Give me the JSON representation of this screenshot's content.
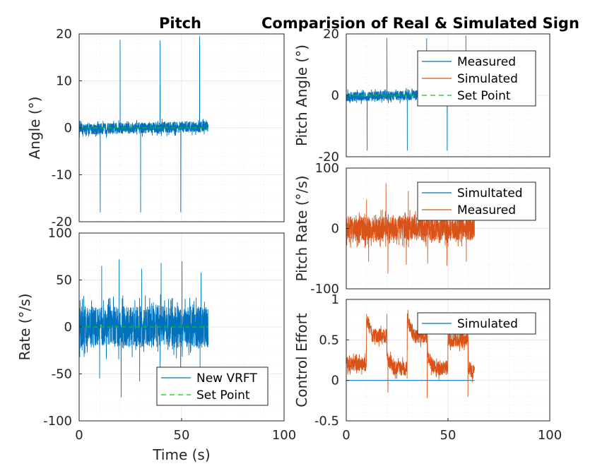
{
  "colors": {
    "blue": "#0072BD",
    "orange": "#D95319",
    "setpoint": "#00CC00",
    "grid": "#e3e3e3",
    "axis": "#262626"
  },
  "chart_data": [
    {
      "id": "left-top",
      "type": "line",
      "title": "Pitch",
      "xlabel": "",
      "ylabel": "Angle (°)",
      "xlim": [
        0,
        100
      ],
      "ylim": [
        -20,
        20
      ],
      "yticks": [
        "20",
        "10",
        "0",
        "-10",
        "-20"
      ],
      "xticks": [],
      "grid": true,
      "minor_grid": true,
      "legend": null,
      "series": [
        {
          "color": "blue",
          "kind": "noise",
          "x": [
            0,
            63
          ],
          "level": [
            [
              0,
              -0.3
            ],
            [
              63,
              0.3
            ]
          ],
          "amp": 1.2,
          "spikes": [
            [
              10.3,
              -18
            ],
            [
              20,
              18.7
            ],
            [
              30,
              -18
            ],
            [
              39.5,
              18.6
            ],
            [
              49.6,
              -18
            ],
            [
              58.8,
              19.5
            ]
          ]
        },
        {
          "color": "setpoint",
          "kind": "dashed",
          "x": [
            0,
            63
          ],
          "y": [
            0,
            0
          ]
        }
      ]
    },
    {
      "id": "left-bottom",
      "type": "line",
      "title": "",
      "xlabel": "Time (s)",
      "ylabel": "Rate (°/s)",
      "xlim": [
        0,
        100
      ],
      "ylim": [
        -100,
        100
      ],
      "yticks": [
        "100",
        "50",
        "0",
        "-50",
        "-100"
      ],
      "xticks": [
        "0",
        "50",
        "100"
      ],
      "grid": true,
      "minor_grid": true,
      "legend": {
        "position": "bottom-right",
        "entries": [
          {
            "label": "New VRFT",
            "color": "blue",
            "style": "solid"
          },
          {
            "label": "Set Point",
            "color": "setpoint",
            "style": "dashed"
          }
        ]
      },
      "series": [
        {
          "name": "New VRFT",
          "color": "blue",
          "kind": "noise",
          "x": [
            0,
            63
          ],
          "level": [
            [
              0,
              0
            ],
            [
              63,
              0
            ]
          ],
          "amp": 22,
          "spikes": [
            [
              10,
              -55
            ],
            [
              11,
              65
            ],
            [
              19.5,
              72
            ],
            [
              20.5,
              -75
            ],
            [
              29.5,
              -58
            ],
            [
              30.5,
              62
            ],
            [
              39.5,
              -55
            ],
            [
              40,
              68
            ],
            [
              49.5,
              -62
            ],
            [
              50.2,
              70
            ],
            [
              59,
              -52
            ],
            [
              59.5,
              58
            ]
          ]
        },
        {
          "name": "Set Point",
          "color": "setpoint",
          "kind": "dashed",
          "x": [
            0,
            63
          ],
          "y": [
            0,
            0
          ]
        }
      ]
    },
    {
      "id": "right-top",
      "type": "line",
      "title": "Comparision of Real & Simulated Sign",
      "xlabel": "",
      "ylabel": "Pitch Angle (°)",
      "xlim": [
        0,
        100
      ],
      "ylim": [
        -20,
        20
      ],
      "yticks": [
        "20",
        "0",
        "-20"
      ],
      "xticks": [],
      "grid": true,
      "minor_grid": true,
      "legend": {
        "position": "top-right",
        "entries": [
          {
            "label": "Measured",
            "color": "blue",
            "style": "solid"
          },
          {
            "label": "Simulated",
            "color": "orange",
            "style": "solid"
          },
          {
            "label": "Set Point",
            "color": "setpoint",
            "style": "dashed"
          }
        ]
      },
      "series": [
        {
          "name": "Measured",
          "color": "blue",
          "kind": "noise",
          "x": [
            0,
            63
          ],
          "level": [
            [
              0,
              -0.5
            ],
            [
              63,
              0.5
            ]
          ],
          "amp": 1.6,
          "spikes": [
            [
              10.3,
              -18
            ],
            [
              20,
              18.7
            ],
            [
              30,
              -18
            ],
            [
              39.5,
              18.6
            ],
            [
              49.6,
              -18
            ],
            [
              58.8,
              19.5
            ]
          ]
        },
        {
          "name": "Set Point",
          "color": "setpoint",
          "kind": "dashed",
          "x": [
            0,
            63
          ],
          "y": [
            0,
            0
          ]
        }
      ]
    },
    {
      "id": "right-middle",
      "type": "line",
      "title": "",
      "xlabel": "",
      "ylabel": "Pitch Rate (°/s)",
      "xlim": [
        0,
        100
      ],
      "ylim": [
        -100,
        100
      ],
      "yticks": [
        "100",
        "0",
        "-100"
      ],
      "xticks": [],
      "grid": true,
      "minor_grid": true,
      "legend": {
        "position": "top-right",
        "entries": [
          {
            "label": "Simultated",
            "color": "blue",
            "style": "solid"
          },
          {
            "label": "Measured",
            "color": "orange",
            "style": "solid"
          }
        ]
      },
      "series": [
        {
          "name": "Measured",
          "color": "orange",
          "kind": "noise",
          "x": [
            0,
            63
          ],
          "level": [
            [
              0,
              0
            ],
            [
              63,
              0
            ]
          ],
          "amp": 20,
          "spikes": [
            [
              10,
              48
            ],
            [
              11,
              -55
            ],
            [
              19.5,
              75
            ],
            [
              20.5,
              -75
            ],
            [
              29.5,
              -60
            ],
            [
              30.5,
              62
            ],
            [
              39.5,
              52
            ],
            [
              40,
              -58
            ],
            [
              49.5,
              -62
            ],
            [
              50,
              55
            ],
            [
              59,
              -55
            ],
            [
              59.5,
              48
            ]
          ]
        }
      ]
    },
    {
      "id": "right-bottom",
      "type": "line",
      "title": "",
      "xlabel": "",
      "ylabel": "Control Effort",
      "xlim": [
        0,
        100
      ],
      "ylim": [
        -0.5,
        1
      ],
      "yticks": [
        "1",
        "0.5",
        "0",
        "-0.5"
      ],
      "xticks": [
        "0",
        "50",
        "100"
      ],
      "grid": true,
      "minor_grid": true,
      "legend": {
        "position": "top-right",
        "entries": [
          {
            "label": "Simulated",
            "color": "blue",
            "style": "solid"
          }
        ]
      },
      "series": [
        {
          "name": "Simulated",
          "color": "blue",
          "kind": "solid",
          "x": [
            0,
            63
          ],
          "y": [
            0,
            0
          ]
        },
        {
          "color": "orange",
          "kind": "noise",
          "x": [
            0,
            63
          ],
          "amp": 0.09,
          "level": [
            [
              0,
              0.2
            ],
            [
              9.9,
              0.2
            ],
            [
              10,
              0.75
            ],
            [
              13,
              0.55
            ],
            [
              19.9,
              0.55
            ],
            [
              20,
              0.3
            ],
            [
              23,
              0.15
            ],
            [
              29.9,
              0.15
            ],
            [
              30,
              0.75
            ],
            [
              33,
              0.55
            ],
            [
              39.9,
              0.55
            ],
            [
              40,
              0.3
            ],
            [
              43,
              0.15
            ],
            [
              49.9,
              0.15
            ],
            [
              50,
              0.5
            ],
            [
              53,
              0.5
            ],
            [
              59.9,
              0.5
            ],
            [
              60,
              0.15
            ],
            [
              63,
              0.1
            ]
          ],
          "spikes": [
            [
              10,
              0.82
            ],
            [
              20,
              0.82
            ],
            [
              20.5,
              -0.15
            ],
            [
              30,
              0.8
            ],
            [
              39.8,
              -0.22
            ],
            [
              50,
              0.8
            ],
            [
              59.8,
              -0.2
            ]
          ]
        }
      ]
    }
  ]
}
